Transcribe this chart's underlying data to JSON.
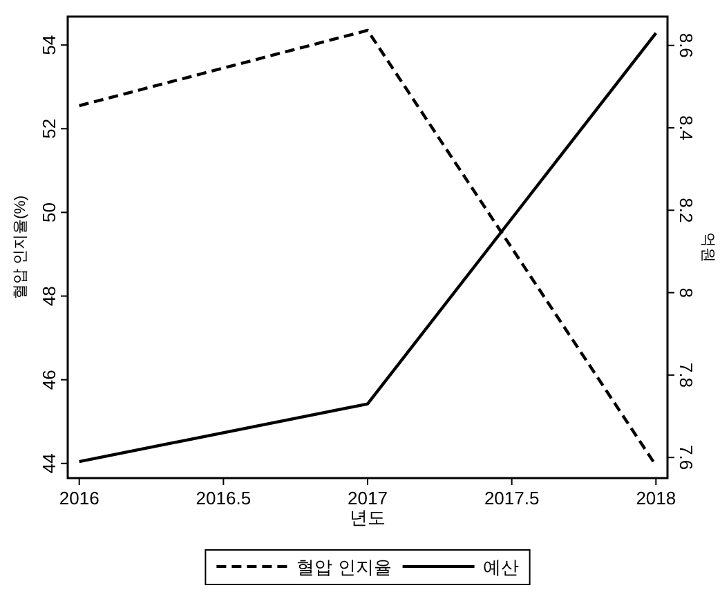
{
  "chart_data": {
    "type": "line",
    "xlabel": "년도",
    "ylabel": "혈압 인지율(%)",
    "y2label": "억원",
    "x": [
      2016,
      2017,
      2018
    ],
    "series": [
      {
        "name": "혈압 인지율",
        "color": "#000000",
        "values": [
          52.55,
          54.35,
          43.95
        ],
        "line_style": "dashed"
      },
      {
        "name": "예산",
        "color": "#000000",
        "values": [
          7.59,
          7.73,
          8.63
        ],
        "axis": "y2",
        "line_style": "solid"
      }
    ],
    "xlim": [
      2015.96,
      2018.04
    ],
    "xticks": [
      2016,
      2016.5,
      2017,
      2017.5,
      2018
    ],
    "ylim": [
      43.65,
      54.68
    ],
    "yticks": [
      44,
      46,
      48,
      50,
      52,
      54
    ],
    "y2lim": [
      7.55,
      8.67
    ],
    "y2ticks": [
      7.6,
      7.8,
      8,
      8.2,
      8.4,
      8.6
    ],
    "grid": false,
    "legend": "bottom",
    "marker": "none"
  }
}
